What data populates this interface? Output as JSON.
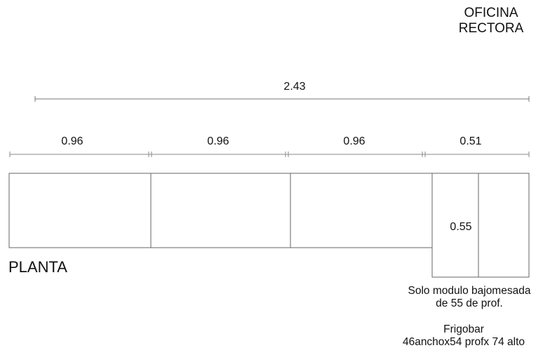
{
  "title": {
    "line1": "OFICINA",
    "line2": "RECTORA"
  },
  "dimensions": {
    "overall": "2.43",
    "module1": "0.96",
    "module2": "0.96",
    "module3": "0.96",
    "module4": "0.51",
    "depth": "0.55"
  },
  "view_label": "PLANTA",
  "notes": {
    "module_line1": "Solo modulo bajomesada",
    "module_line2": "de 55 de prof.",
    "fridge_line1": "Frigobar",
    "fridge_line2": "46anchox54 profx 74 alto"
  },
  "colors": {
    "line": "#666666",
    "text": "#111111"
  }
}
